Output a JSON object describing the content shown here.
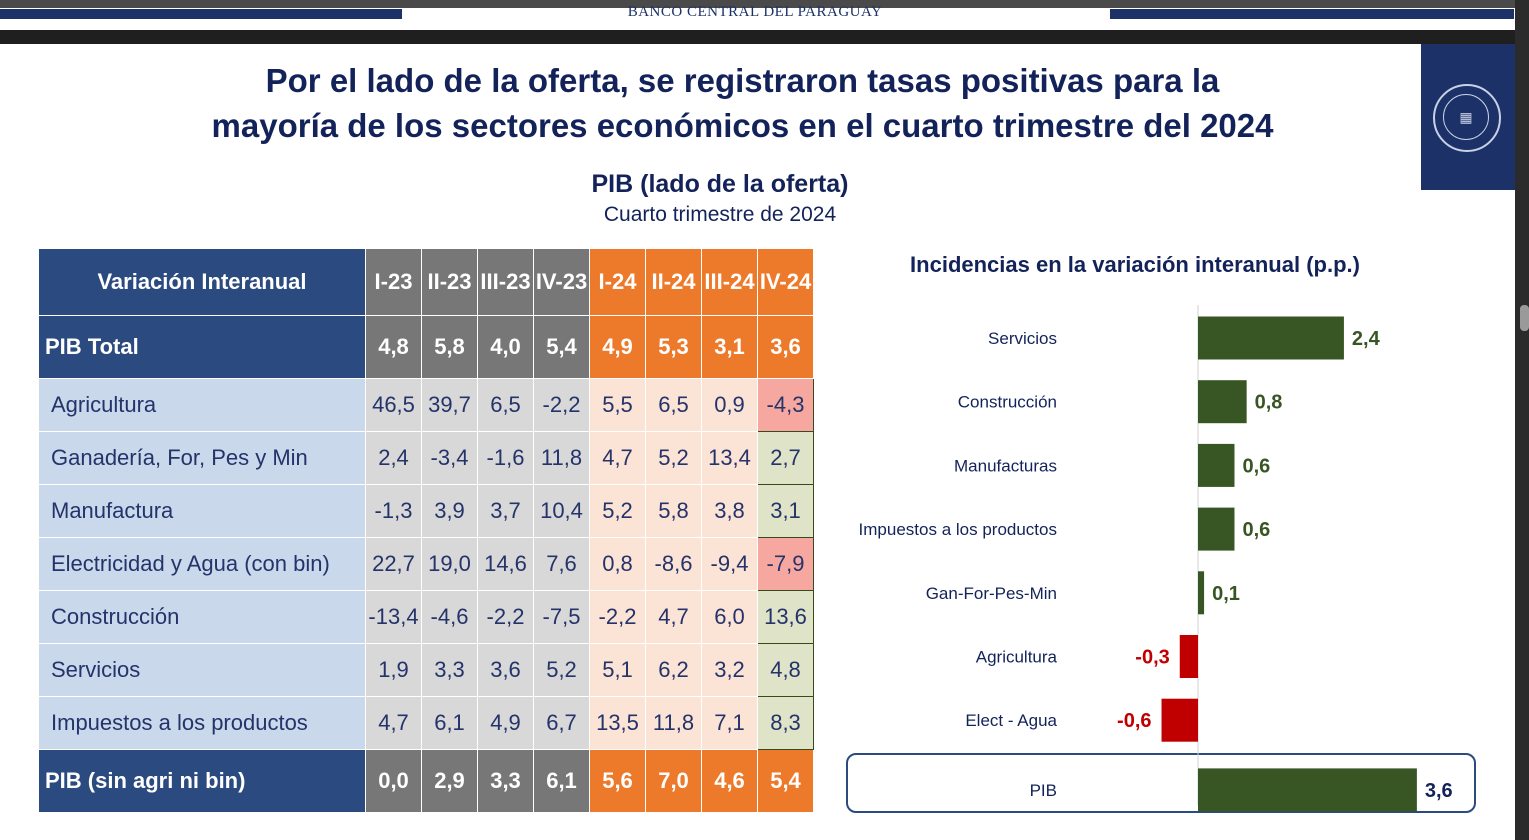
{
  "header": {
    "bank_name": "BANCO CENTRAL DEL PARAGUAY",
    "title_line1": "Por el lado de la oferta, se registraron tasas positivas para la",
    "title_line2": "mayoría de los sectores económicos en el cuarto trimestre del 2024",
    "logo_text": "BANCO CENTRAL DEL PARAGUAY"
  },
  "chart_title": "PIB (lado de la oferta)",
  "chart_subtitle": "Cuarto trimestre de 2024",
  "colors": {
    "navy": "#2b4a80",
    "gray": "#777777",
    "orange": "#ed7a2b",
    "positive_bar": "#375623",
    "negative_bar": "#c00000"
  },
  "chart_data": [
    {
      "type": "table",
      "title": "Variación Interanual",
      "columns": [
        "I-23",
        "II-23",
        "III-23",
        "IV-23",
        "I-24",
        "II-24",
        "III-24",
        "IV-24"
      ],
      "total_row": {
        "label": "PIB Total",
        "values": [
          "4,8",
          "5,8",
          "4,0",
          "5,4",
          "4,9",
          "5,3",
          "3,1",
          "3,6"
        ]
      },
      "rows": [
        {
          "label": "Agricultura",
          "values": [
            "46,5",
            "39,7",
            "6,5",
            "-2,2",
            "5,5",
            "6,5",
            "0,9",
            "-4,3"
          ]
        },
        {
          "label": "Ganadería, For, Pes y Min",
          "values": [
            "2,4",
            "-3,4",
            "-1,6",
            "11,8",
            "4,7",
            "5,2",
            "13,4",
            "2,7"
          ]
        },
        {
          "label": "Manufactura",
          "values": [
            "-1,3",
            "3,9",
            "3,7",
            "10,4",
            "5,2",
            "5,8",
            "3,8",
            "3,1"
          ]
        },
        {
          "label": "Electricidad y Agua (con bin)",
          "values": [
            "22,7",
            "19,0",
            "14,6",
            "7,6",
            "0,8",
            "-8,6",
            "-9,4",
            "-7,9"
          ]
        },
        {
          "label": "Construcción",
          "values": [
            "-13,4",
            "-4,6",
            "-2,2",
            "-7,5",
            "-2,2",
            "4,7",
            "6,0",
            "13,6"
          ]
        },
        {
          "label": "Servicios",
          "values": [
            "1,9",
            "3,3",
            "3,6",
            "5,2",
            "5,1",
            "6,2",
            "3,2",
            "4,8"
          ]
        },
        {
          "label": "Impuestos a los productos",
          "values": [
            "4,7",
            "6,1",
            "4,9",
            "6,7",
            "13,5",
            "11,8",
            "7,1",
            "8,3"
          ]
        }
      ],
      "footer_row": {
        "label": "PIB (sin agri ni bin)",
        "values": [
          "0,0",
          "2,9",
          "3,3",
          "6,1",
          "5,6",
          "7,0",
          "4,6",
          "5,4"
        ]
      }
    },
    {
      "type": "bar",
      "orientation": "horizontal",
      "title": "Incidencias en la variación interanual (p.p.)",
      "categories": [
        "Servicios",
        "Construcción",
        "Manufacturas",
        "Impuestos a los productos",
        "Gan-For-Pes-Min",
        "Agricultura",
        "Elect - Agua",
        "PIB"
      ],
      "values": [
        2.4,
        0.8,
        0.6,
        0.6,
        0.1,
        -0.3,
        -0.6,
        3.6
      ],
      "labels": [
        "2,4",
        "0,8",
        "0,6",
        "0,6",
        "0,1",
        "-0,3",
        "-0,6",
        "3,6"
      ],
      "xlim": [
        -0.65,
        3.7
      ]
    }
  ]
}
